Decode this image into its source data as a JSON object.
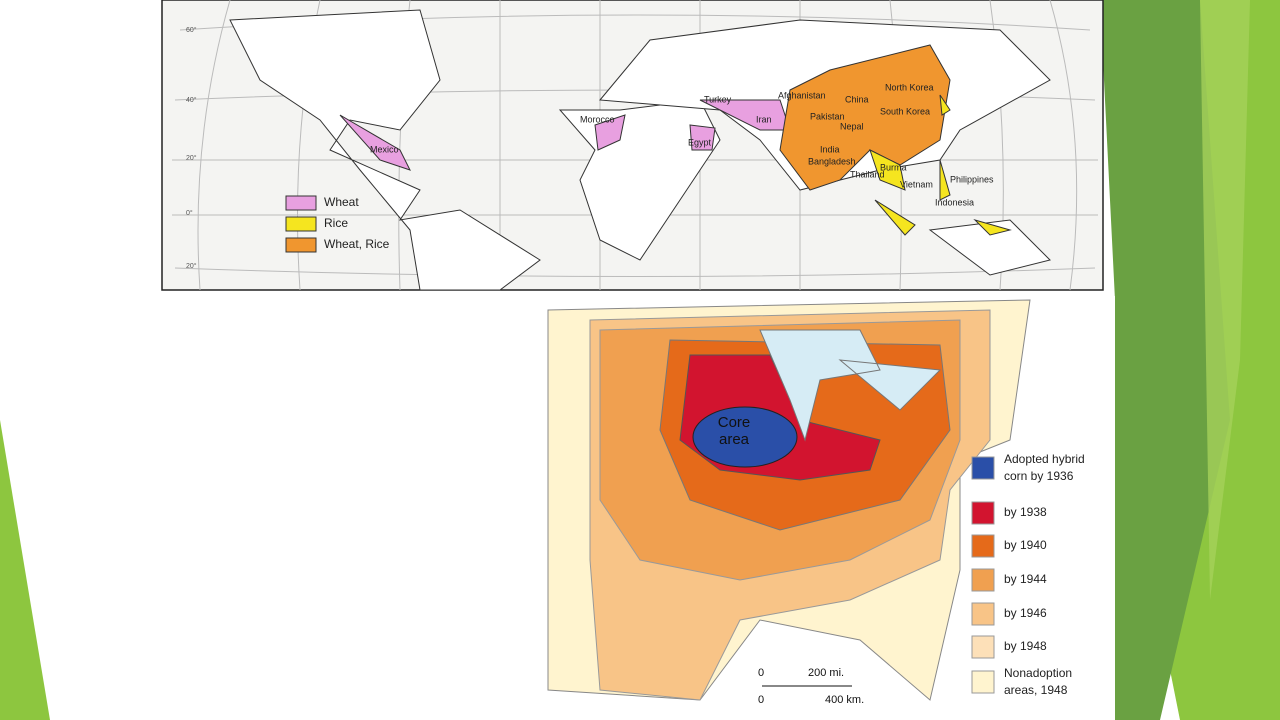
{
  "world_map": {
    "legend": [
      "Wheat",
      "Rice",
      "Wheat, Rice"
    ],
    "country_labels": [
      "Mexico",
      "Morocco",
      "Egypt",
      "Turkey",
      "Iran",
      "Afghanistan",
      "China",
      "North Korea",
      "South Korea",
      "Pakistan",
      "Nepal",
      "India",
      "Bangladesh",
      "Burma",
      "Thailand",
      "Vietnam",
      "Philippines",
      "Indonesia"
    ],
    "latitude_labels": [
      "60°",
      "40°",
      "20°",
      "0°",
      "20°"
    ]
  },
  "corn_map": {
    "core_label": [
      "Core",
      "area"
    ],
    "legend": [
      [
        "Adopted hybrid",
        "corn by 1936"
      ],
      [
        "by 1938"
      ],
      [
        "by 1940"
      ],
      [
        "by 1944"
      ],
      [
        "by 1946"
      ],
      [
        "by 1948"
      ],
      [
        "Nonadoption",
        "areas, 1948"
      ]
    ],
    "scale": {
      "miles_zero": "0",
      "miles": "200 mi.",
      "km_zero": "0",
      "km": "400 km."
    }
  }
}
